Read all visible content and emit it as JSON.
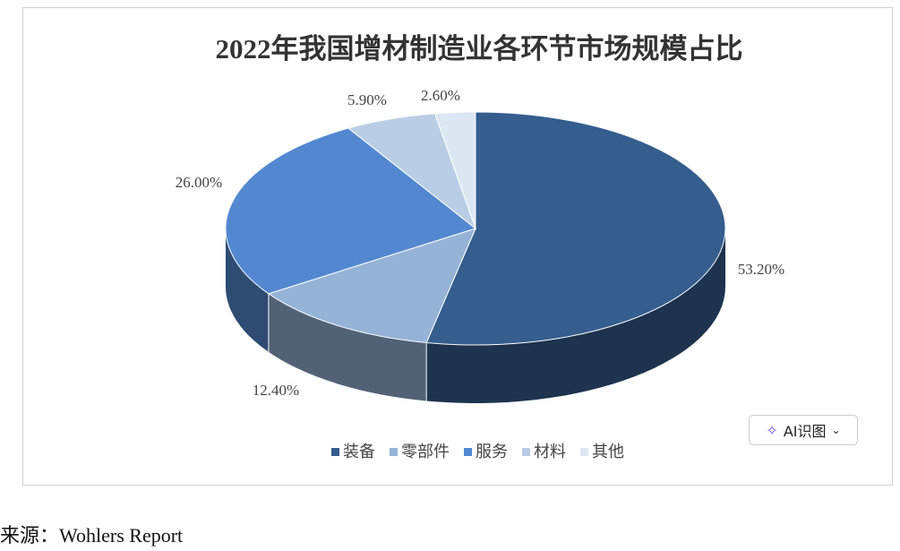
{
  "chart_data": {
    "type": "pie",
    "title": "2022年我国增材制造业各环节市场规模占比",
    "categories": [
      "装备",
      "零部件",
      "服务",
      "材料",
      "其他"
    ],
    "values": [
      53.2,
      12.4,
      26.0,
      5.9,
      2.6
    ],
    "value_labels": [
      "53.20%",
      "12.40%",
      "26.00%",
      "5.90%",
      "2.60%"
    ],
    "colors": [
      "#355d8e",
      "#95b3d7",
      "#5388d0",
      "#b9cde5",
      "#dde7f3"
    ]
  },
  "source": "来源：Wohlers Report",
  "ai_button": "AI识图"
}
